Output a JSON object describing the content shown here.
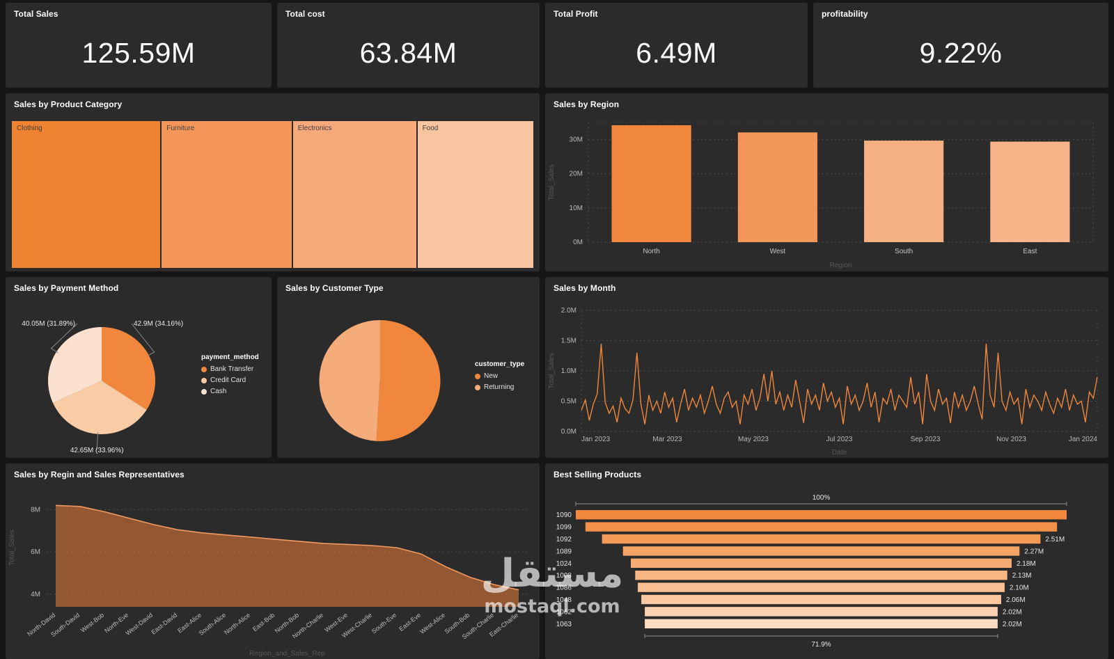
{
  "watermark": {
    "arabic_text": "مستقل",
    "domain_text": "mostaql.com"
  },
  "kpis": [
    {
      "label": "Total Sales",
      "value": "125.59M"
    },
    {
      "label": "Total cost",
      "value": "63.84M"
    },
    {
      "label": "Total Profit",
      "value": "6.49M"
    },
    {
      "label": "profitability",
      "value": "9.22%"
    }
  ],
  "chart_data": [
    {
      "id": "category_treemap",
      "type": "treemap",
      "title": "Sales by Product Category",
      "items": [
        {
          "label": "Clothing",
          "width_pct": 28.7,
          "color": "#F08332"
        },
        {
          "label": "Furniture",
          "width_pct": 25.1,
          "color": "#F4955A"
        },
        {
          "label": "Electronics",
          "width_pct": 23.8,
          "color": "#F7A97C"
        },
        {
          "label": "Food",
          "width_pct": 22.4,
          "color": "#F9C5A0"
        }
      ]
    },
    {
      "id": "region_bar",
      "type": "bar",
      "title": "Sales by Region",
      "categories": [
        "North",
        "West",
        "South",
        "East"
      ],
      "values": [
        34.2,
        32.1,
        29.7,
        29.4
      ],
      "colors": [
        "#F0873C",
        "#F29659",
        "#F6B183",
        "#F6B488"
      ],
      "ymax": 35,
      "yticks": [
        0,
        10,
        20,
        30
      ],
      "ytick_labels": [
        "0M",
        "10M",
        "20M",
        "30M"
      ],
      "xlabel": "Region",
      "ylabel": "Total_Sales"
    },
    {
      "id": "payment_pie",
      "type": "pie",
      "title": "Sales by Payment Method",
      "radius": 77,
      "legend_title": "payment_method",
      "slices": [
        {
          "label": "Bank Transfer",
          "pct": 34.16,
          "value_label": "42.9M (34.16%)",
          "color": "#F0873C"
        },
        {
          "label": "Credit Card",
          "pct": 33.96,
          "value_label": "42.65M (33.96%)",
          "color": "#F9CCA6"
        },
        {
          "label": "Cash",
          "pct": 31.89,
          "value_label": "40.05M (31.89%)",
          "color": "#FBE0CE"
        }
      ]
    },
    {
      "id": "customer_pie",
      "type": "pie",
      "title": "Sales by Customer Type",
      "radius": 87,
      "legend_title": "customer_type",
      "slices": [
        {
          "label": "New",
          "pct": 50.9,
          "value_label": "",
          "color": "#F0873C"
        },
        {
          "label": "Returning",
          "pct": 49.1,
          "value_label": "",
          "color": "#F5AC7B"
        }
      ]
    },
    {
      "id": "month_line",
      "type": "line",
      "title": "Sales by Month",
      "color": "#F0873C",
      "ymax": 2.0,
      "yticks": [
        0,
        0.5,
        1.0,
        1.5,
        2.0
      ],
      "ytick_labels": [
        "0.0M",
        "0.5M",
        "1.0M",
        "1.5M",
        "2.0M"
      ],
      "xtick_labels": [
        "Jan 2023",
        "Mar 2023",
        "May 2023",
        "Jul 2023",
        "Sep 2023",
        "Nov 2023",
        "Jan 2024"
      ],
      "xlabel": "Date",
      "ylabel": "Total_Sales",
      "series": [
        0.35,
        0.52,
        0.18,
        0.45,
        0.62,
        1.45,
        0.48,
        0.3,
        0.42,
        0.15,
        0.55,
        0.38,
        0.3,
        0.52,
        1.3,
        0.45,
        0.12,
        0.6,
        0.35,
        0.5,
        0.3,
        0.65,
        0.4,
        0.55,
        0.15,
        0.45,
        0.7,
        0.35,
        0.55,
        0.4,
        0.6,
        0.3,
        0.5,
        0.75,
        0.45,
        0.3,
        0.55,
        0.65,
        0.4,
        0.5,
        0.12,
        0.6,
        0.45,
        0.7,
        0.35,
        0.55,
        0.95,
        0.5,
        1.0,
        0.45,
        0.65,
        0.35,
        0.6,
        0.4,
        0.85,
        0.5,
        0.14,
        0.7,
        0.45,
        0.6,
        0.35,
        0.8,
        0.5,
        0.65,
        0.4,
        0.55,
        0.12,
        0.75,
        0.45,
        0.6,
        0.35,
        0.5,
        0.8,
        0.4,
        0.65,
        0.15,
        0.55,
        0.45,
        0.7,
        0.35,
        0.6,
        0.5,
        0.4,
        0.9,
        0.45,
        0.65,
        0.12,
        0.95,
        0.5,
        0.35,
        0.7,
        0.45,
        0.55,
        0.14,
        0.65,
        0.4,
        0.6,
        0.35,
        0.5,
        0.75,
        0.45,
        0.2,
        1.45,
        0.6,
        0.4,
        1.3,
        0.5,
        0.35,
        0.65,
        0.45,
        0.55,
        0.12,
        0.7,
        0.4,
        0.6,
        0.5,
        0.35,
        0.65,
        0.45,
        0.3,
        0.55,
        0.4,
        0.7,
        0.35,
        0.6,
        0.45,
        0.5,
        0.15,
        0.65,
        0.55,
        0.9
      ]
    },
    {
      "id": "rep_area",
      "type": "area",
      "title": "Sales by Regin and Sales Representatives",
      "categories": [
        "North-David",
        "South-David",
        "West-Bob",
        "North-Eve",
        "West-David",
        "East-David",
        "East-Alice",
        "South-Alice",
        "North-Alice",
        "East-Bob",
        "North-Bob",
        "North-Charlie",
        "West-Eve",
        "West-Charlie",
        "South-Eve",
        "East-Eve",
        "West-Alice",
        "South-Bob",
        "South-Charlie",
        "East-Charlie"
      ],
      "values": [
        8.2,
        8.15,
        7.9,
        7.6,
        7.3,
        7.05,
        6.9,
        6.8,
        6.7,
        6.6,
        6.5,
        6.4,
        6.35,
        6.3,
        6.2,
        5.9,
        5.3,
        4.8,
        4.45,
        4.2
      ],
      "ylim": [
        3.4,
        9.0
      ],
      "yticks": [
        4,
        6,
        8
      ],
      "ytick_labels": [
        "4M",
        "6M",
        "8M"
      ],
      "xlabel": "Region_and_Sales_Rep",
      "ylabel": "Total_Sales",
      "fill": "rgba(234,125,55,0.55)",
      "stroke": "#F29A62"
    },
    {
      "id": "product_funnel",
      "type": "funnel",
      "title": "Best Selling Products",
      "categories": [
        "1090",
        "1099",
        "1092",
        "1089",
        "1024",
        "1008",
        "1086",
        "1048",
        "1062",
        "1063"
      ],
      "values": [
        2.81,
        2.7,
        2.51,
        2.27,
        2.18,
        2.13,
        2.1,
        2.06,
        2.02,
        2.02
      ],
      "value_labels": [
        "",
        "",
        "2.51M",
        "2.27M",
        "2.18M",
        "2.13M",
        "2.10M",
        "2.06M",
        "2.02M",
        "2.02M"
      ],
      "top_annotation": "100%",
      "bottom_annotation": "71.9%",
      "colors": [
        "#F0873C",
        "#F19048",
        "#F39A57",
        "#F5A466",
        "#F6AD74",
        "#F7B683",
        "#F8BF92",
        "#FAC8A1",
        "#FBD2B1",
        "#FBDCC2"
      ]
    }
  ]
}
